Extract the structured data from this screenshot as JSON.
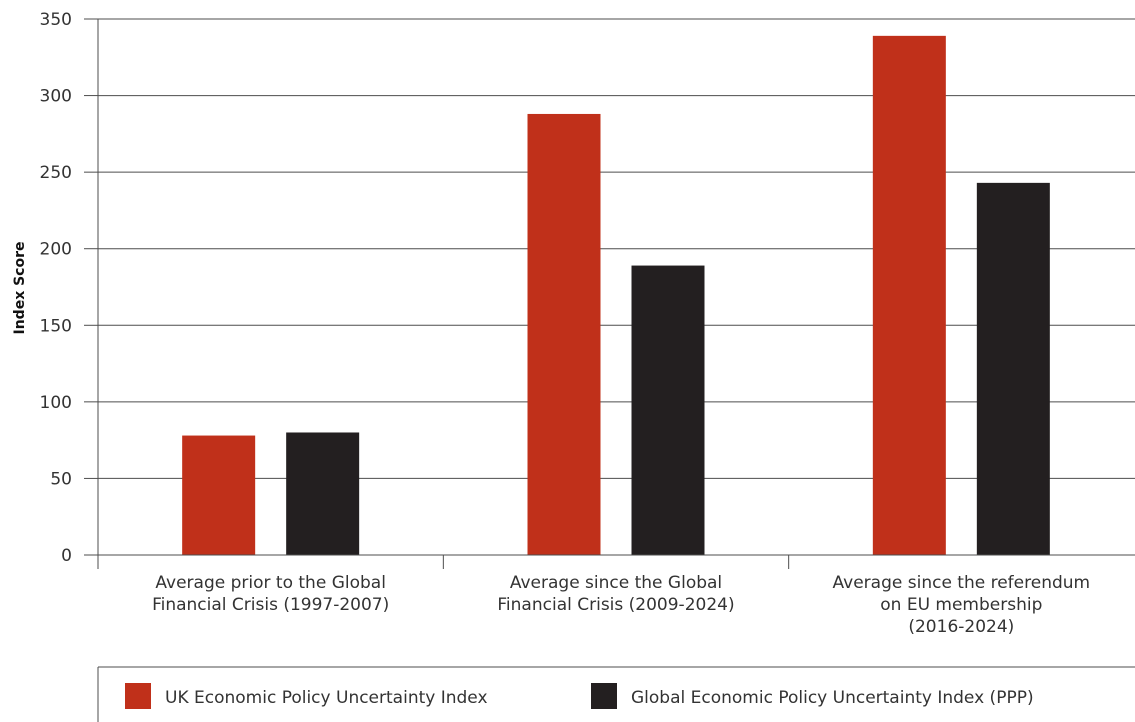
{
  "chart_data": {
    "type": "bar",
    "ylabel": "Index Score",
    "ylim": [
      0,
      350
    ],
    "yticks": [
      0,
      50,
      100,
      150,
      200,
      250,
      300,
      350
    ],
    "grid": true,
    "legend_position": "bottom",
    "categories": [
      [
        "Average prior to the Global",
        "Financial Crisis (1997-2007)"
      ],
      [
        "Average since the Global",
        "Financial Crisis (2009-2024)"
      ],
      [
        "Average since the referendum",
        "on EU membership",
        "(2016-2024)"
      ]
    ],
    "series": [
      {
        "name": "UK Economic Policy Uncertainty Index",
        "color": "#c0301a",
        "values": [
          78,
          288,
          339
        ]
      },
      {
        "name": "Global Economic Policy Uncertainty Index (PPP)",
        "color": "#231f20",
        "values": [
          80,
          189,
          243
        ]
      }
    ]
  }
}
